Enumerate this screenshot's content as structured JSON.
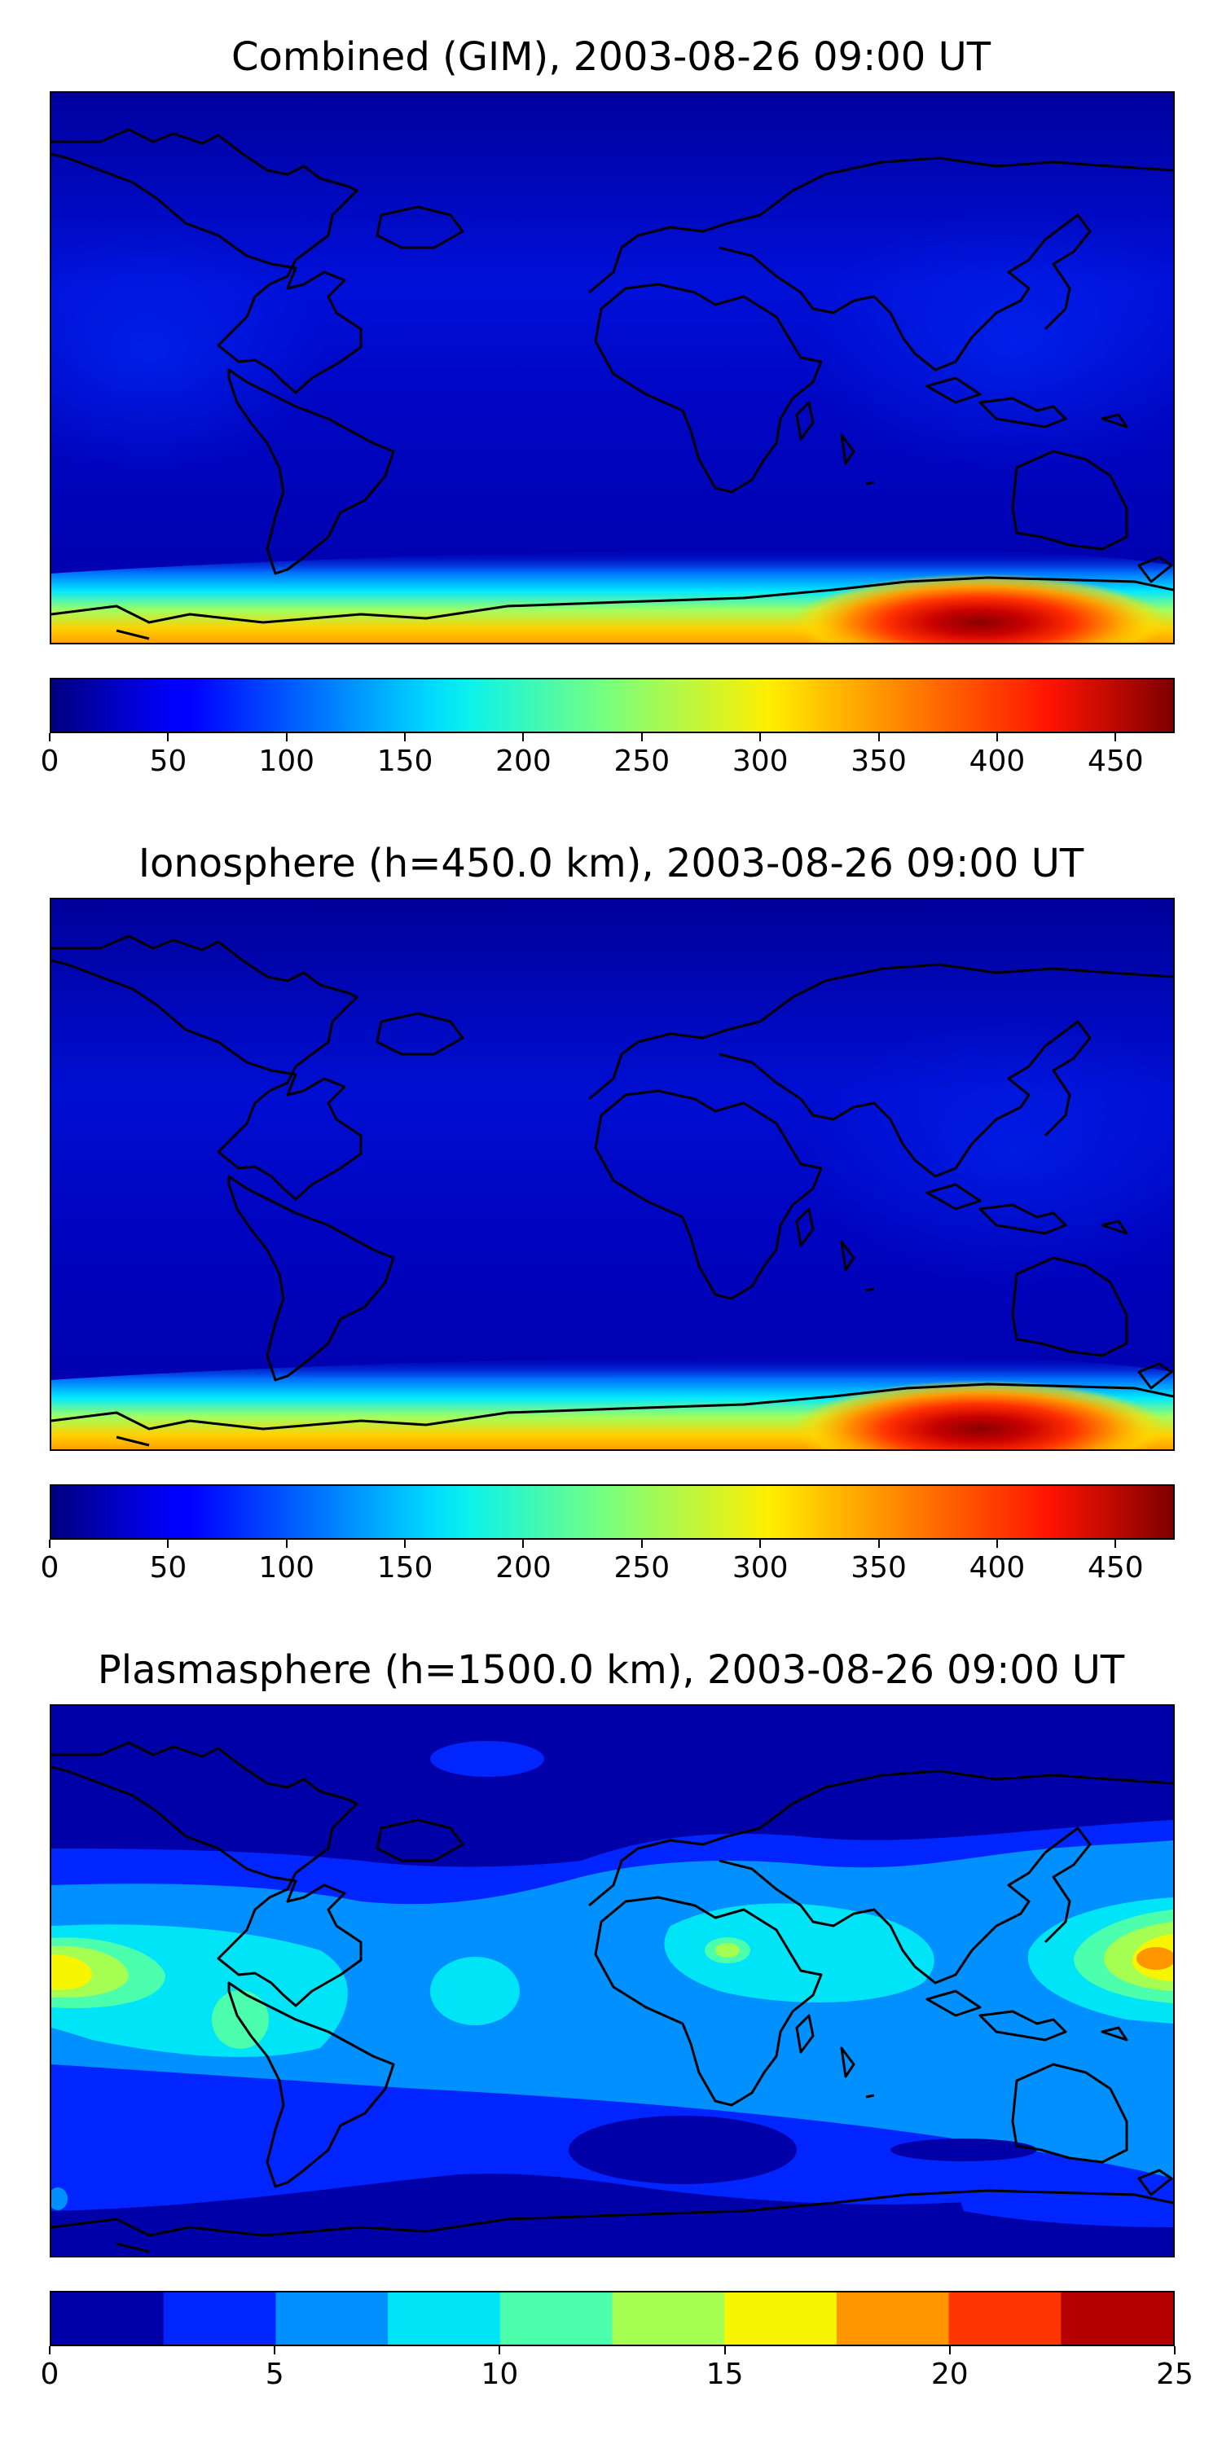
{
  "panels": [
    {
      "title": "Combined (GIM), 2003-08-26 09:00 UT",
      "colorbar": {
        "colormap": "jet",
        "style": "continuous",
        "min": 0,
        "max": 475,
        "ticks": [
          "0",
          "50",
          "100",
          "150",
          "200",
          "250",
          "300",
          "350",
          "400",
          "450"
        ],
        "tick_values": [
          0,
          50,
          100,
          150,
          200,
          250,
          300,
          350,
          400,
          450
        ]
      }
    },
    {
      "title": "Ionosphere  (h=450.0 km), 2003-08-26 09:00 UT",
      "colorbar": {
        "colormap": "jet",
        "style": "continuous",
        "min": 0,
        "max": 475,
        "ticks": [
          "0",
          "50",
          "100",
          "150",
          "200",
          "250",
          "300",
          "350",
          "400",
          "450"
        ],
        "tick_values": [
          0,
          50,
          100,
          150,
          200,
          250,
          300,
          350,
          400,
          450
        ]
      }
    },
    {
      "title": "Plasmasphere (h=1500.0 km), 2003-08-26 09:00 UT",
      "colorbar": {
        "colormap": "jet",
        "style": "discrete",
        "min": 0,
        "max": 25,
        "ticks": [
          "0",
          "5",
          "10",
          "15",
          "20",
          "25"
        ],
        "tick_values": [
          0,
          5,
          10,
          15,
          20,
          25
        ],
        "levels": [
          0,
          2.5,
          5,
          7.5,
          10,
          12.5,
          15,
          17.5,
          20,
          22.5,
          25
        ],
        "level_colors": [
          "#0000a8",
          "#0025ff",
          "#0090ff",
          "#00e4f8",
          "#4bffad",
          "#a4ff52",
          "#f8f500",
          "#ff9600",
          "#ff3500",
          "#b40000"
        ]
      }
    }
  ]
}
